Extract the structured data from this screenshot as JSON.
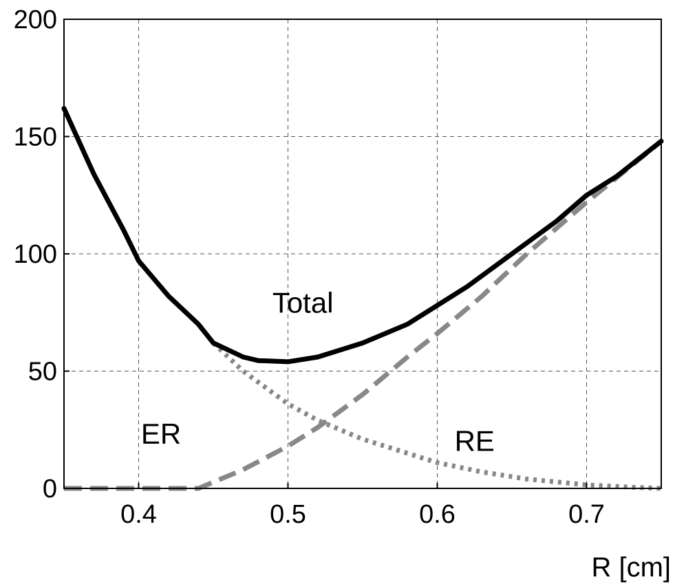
{
  "chart_data": {
    "type": "line",
    "title": "",
    "xlabel": "R [cm]",
    "ylabel": "",
    "xlim": [
      0.35,
      0.75
    ],
    "ylim": [
      0,
      200
    ],
    "grid": true,
    "xticks": [
      0.4,
      0.5,
      0.6,
      0.7
    ],
    "xtick_labels": [
      "0.4",
      "0.5",
      "0.6",
      "0.7"
    ],
    "yticks": [
      0,
      50,
      100,
      150,
      200
    ],
    "ytick_labels": [
      "0",
      "50",
      "100",
      "150",
      "200"
    ],
    "series": [
      {
        "name": "Total",
        "style": "solid",
        "color": "#000000",
        "x": [
          0.35,
          0.37,
          0.39,
          0.4,
          0.42,
          0.44,
          0.45,
          0.47,
          0.48,
          0.5,
          0.52,
          0.55,
          0.58,
          0.6,
          0.62,
          0.65,
          0.68,
          0.7,
          0.72,
          0.75
        ],
        "y": [
          162,
          134,
          110,
          97,
          82,
          70,
          62,
          56,
          54.5,
          54,
          56,
          62,
          70,
          78,
          86,
          100,
          114,
          125,
          133,
          148
        ]
      },
      {
        "name": "ER",
        "style": "dotted",
        "color": "#888888",
        "x": [
          0.45,
          0.47,
          0.5,
          0.52,
          0.55,
          0.58,
          0.6,
          0.63,
          0.66,
          0.7,
          0.73,
          0.75
        ],
        "y": [
          62,
          50,
          36,
          29,
          21,
          15,
          11,
          7,
          4,
          1.5,
          0.5,
          0
        ]
      },
      {
        "name": "RE",
        "style": "dashed",
        "color": "#888888",
        "x": [
          0.35,
          0.4,
          0.44,
          0.47,
          0.5,
          0.52,
          0.55,
          0.58,
          0.6,
          0.63,
          0.66,
          0.7,
          0.75
        ],
        "y": [
          0,
          0,
          0,
          8,
          18,
          26,
          40,
          56,
          66,
          82,
          100,
          122,
          148
        ]
      }
    ],
    "annotations": [
      {
        "text": "Total",
        "x": 0.51,
        "y": 75
      },
      {
        "text": "ER",
        "x": 0.415,
        "y": 19
      },
      {
        "text": "RE",
        "x": 0.625,
        "y": 16
      }
    ]
  }
}
